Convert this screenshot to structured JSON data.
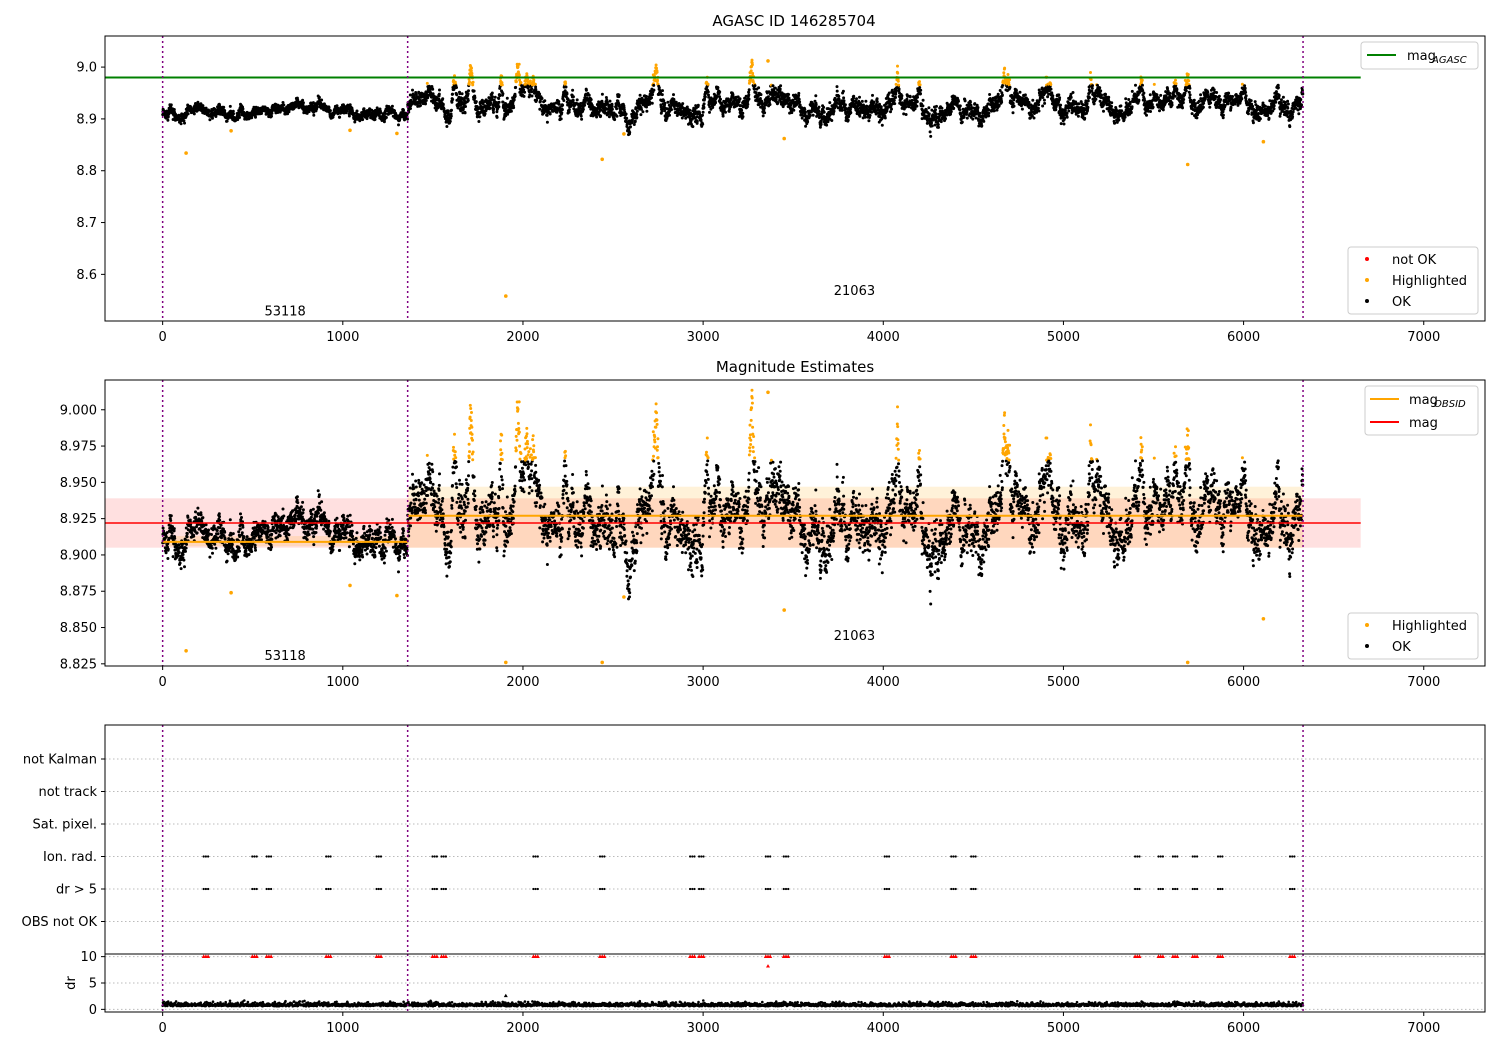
{
  "figure": {
    "title": "AGASC ID 146285704",
    "colors": {
      "ok": "#000000",
      "highlighted": "#ffa500",
      "not_ok": "#ff0000",
      "mag_agasc": "#008000",
      "mag": "#ff0000",
      "mag_obsid": "#ffa500",
      "obsid_divider": "#800080",
      "flag_grid": "#bbbbbb"
    }
  },
  "chart_data": [
    {
      "type": "scatter",
      "title": "",
      "xlim": [
        -320,
        7340
      ],
      "ylim": [
        8.51,
        9.06
      ],
      "xticks": [
        0,
        1000,
        2000,
        3000,
        4000,
        5000,
        6000,
        7000
      ],
      "yticks": [
        8.6,
        8.7,
        8.8,
        8.9,
        9.0
      ],
      "ytick_labels": [
        "8.6",
        "8.7",
        "8.8",
        "8.9",
        "9.0"
      ],
      "obsid_boundaries": [
        0,
        1360,
        6330
      ],
      "obsid_labels": [
        {
          "text": "53118",
          "x": 680,
          "y": 8.53
        },
        {
          "text": "21063",
          "x": 3840,
          "y": 8.57
        }
      ],
      "lines": [
        {
          "name": "mag_AGASC",
          "y": 8.98,
          "x": [
            -320,
            6650
          ]
        }
      ],
      "legend_lines": [
        {
          "label_main": "mag",
          "label_sub": "AGASC",
          "color": "#008000"
        }
      ],
      "legend_points": [
        {
          "label": "not OK",
          "color": "#ff0000"
        },
        {
          "label": "Highlighted",
          "color": "#ffa500"
        },
        {
          "label": "OK",
          "color": "#000000"
        }
      ],
      "trend": {
        "segments": [
          {
            "x": [
              0,
              1360
            ],
            "y": [
              8.912,
              8.912
            ],
            "noise": 0.008
          },
          {
            "x": [
              1360,
              6330
            ],
            "y": [
              8.928,
              8.928
            ],
            "noise": 0.014
          }
        ],
        "highlight_above": 8.965
      },
      "outliers": [
        {
          "x": 130,
          "y": 8.834
        },
        {
          "x": 380,
          "y": 8.877
        },
        {
          "x": 1040,
          "y": 8.878
        },
        {
          "x": 1300,
          "y": 8.872
        },
        {
          "x": 1905,
          "y": 8.558
        },
        {
          "x": 2440,
          "y": 8.822
        },
        {
          "x": 2560,
          "y": 8.871
        },
        {
          "x": 3360,
          "y": 9.012
        },
        {
          "x": 3450,
          "y": 8.862
        },
        {
          "x": 5690,
          "y": 8.812
        },
        {
          "x": 6110,
          "y": 8.856
        }
      ],
      "spikes": [
        1620,
        1710,
        1880,
        1970,
        2230,
        2740,
        3020,
        3270,
        3780,
        4080,
        4200,
        4670,
        5150,
        5430,
        5690,
        6190
      ]
    },
    {
      "type": "scatter",
      "title": "Magnitude Estimates",
      "xlim": [
        -320,
        7340
      ],
      "ylim": [
        8.8235,
        9.0205
      ],
      "xticks": [
        0,
        1000,
        2000,
        3000,
        4000,
        5000,
        6000,
        7000
      ],
      "yticks": [
        8.825,
        8.85,
        8.875,
        8.9,
        8.925,
        8.95,
        8.975,
        9.0
      ],
      "ytick_labels": [
        "8.825",
        "8.850",
        "8.875",
        "8.900",
        "8.925",
        "8.950",
        "8.975",
        "9.000"
      ],
      "obsid_boundaries": [
        0,
        1360,
        6330
      ],
      "obsid_labels": [
        {
          "text": "53118",
          "x": 680,
          "y": 8.831
        },
        {
          "text": "21063",
          "x": 3840,
          "y": 8.845
        }
      ],
      "mag": {
        "value": 8.922,
        "band": [
          8.905,
          8.939
        ],
        "x": [
          -320,
          6650
        ]
      },
      "mag_obsid": [
        {
          "x": [
            0,
            1360
          ],
          "value": 8.909,
          "band": [
            8.906,
            8.913
          ]
        },
        {
          "x": [
            1360,
            6330
          ],
          "value": 8.927,
          "band": [
            8.905,
            8.947
          ]
        }
      ],
      "legend_lines": [
        {
          "label_main": "mag",
          "label_sub": "OBSID",
          "color": "#ffa500"
        },
        {
          "label_main": "mag",
          "label_sub": "",
          "color": "#ff0000"
        }
      ],
      "legend_points": [
        {
          "label": "Highlighted",
          "color": "#ffa500"
        },
        {
          "label": "OK",
          "color": "#000000"
        }
      ],
      "outliers": [
        {
          "x": 130,
          "y": 8.834
        },
        {
          "x": 380,
          "y": 8.874
        },
        {
          "x": 1040,
          "y": 8.879
        },
        {
          "x": 1300,
          "y": 8.872
        },
        {
          "x": 1905,
          "y": 8.826
        },
        {
          "x": 2440,
          "y": 8.826
        },
        {
          "x": 2560,
          "y": 8.871
        },
        {
          "x": 3360,
          "y": 9.012
        },
        {
          "x": 3450,
          "y": 8.862
        },
        {
          "x": 5690,
          "y": 8.826
        },
        {
          "x": 6110,
          "y": 8.856
        }
      ]
    },
    {
      "type": "scatter",
      "title": "",
      "xlim": [
        -320,
        7340
      ],
      "xticks": [
        0,
        1000,
        2000,
        3000,
        4000,
        5000,
        6000,
        7000
      ],
      "flag_rows": [
        "not Kalman",
        "not track",
        "Sat. pixel.",
        "Ion. rad.",
        "dr > 5",
        "OBS not OK"
      ],
      "flag_events": {
        "Ion. rad.": [
          240,
          510,
          590,
          920,
          1200,
          1510,
          1560,
          2070,
          2440,
          2940,
          2990,
          3360,
          3460,
          4020,
          4390,
          4500,
          5410,
          5540,
          5620,
          5730,
          5870,
          6270
        ],
        "dr > 5": [
          240,
          510,
          590,
          920,
          1200,
          1510,
          1560,
          2070,
          2440,
          2940,
          2990,
          3360,
          3460,
          4020,
          4390,
          4500,
          5410,
          5540,
          5620,
          5730,
          5870,
          6270
        ]
      },
      "dr": {
        "ylabel": "dr",
        "ylim": [
          -0.5,
          10.5
        ],
        "yticks": [
          0,
          5,
          10
        ],
        "ytick_labels": [
          "0",
          "5",
          "10"
        ],
        "baseline": 0.6,
        "clipped_markers_y": 10,
        "extra_points": [
          {
            "x": 3360,
            "y": 8.2
          },
          {
            "x": 1905,
            "y": 2.6
          }
        ]
      }
    }
  ],
  "axis_tick_labels": {
    "x": [
      "0",
      "1000",
      "2000",
      "3000",
      "4000",
      "5000",
      "6000",
      "7000"
    ]
  }
}
